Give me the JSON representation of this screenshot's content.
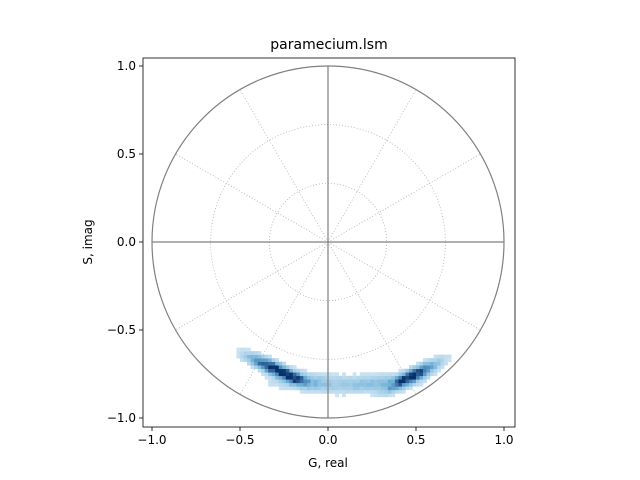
{
  "chart_data": {
    "type": "heatmap",
    "title": "paramecium.lsm",
    "xlabel": "G, real",
    "ylabel": "S, imag",
    "xlim": [
      -1.04,
      1.04
    ],
    "ylim": [
      -1.04,
      1.04
    ],
    "xticks": [
      -1.0,
      -0.5,
      0.0,
      0.5,
      1.0
    ],
    "xtick_labels": [
      "−1.0",
      "−0.5",
      "0.0",
      "0.5",
      "1.0"
    ],
    "yticks": [
      -1.0,
      -0.5,
      0.0,
      0.5,
      1.0
    ],
    "ytick_labels": [
      "−1.0",
      "−0.5",
      "0.0",
      "0.5",
      "1.0"
    ],
    "grid": "polar, dotted",
    "colormap": "Blues",
    "reference": {
      "unit_circle_radius": 1.0,
      "grid_circle_radii": [
        0.333,
        0.667
      ],
      "radial_lines_deg": [
        30,
        60,
        120,
        150,
        210,
        240,
        300,
        330
      ],
      "axis_lines": [
        "horizontal",
        "vertical"
      ]
    },
    "histogram_distribution": {
      "bin_size": 0.02,
      "clusters": [
        {
          "g": -0.32,
          "s": -0.71,
          "spread_along": 0.09,
          "spread_across": 0.022,
          "angle_deg": -24,
          "peak": 1.0
        },
        {
          "g": -0.2,
          "s": -0.77,
          "spread_along": 0.06,
          "spread_across": 0.022,
          "angle_deg": -18,
          "peak": 0.6
        },
        {
          "g": 0.48,
          "s": -0.76,
          "spread_along": 0.1,
          "spread_across": 0.022,
          "angle_deg": 28,
          "peak": 0.95
        },
        {
          "g": 0.05,
          "s": -0.8,
          "spread_along": 0.25,
          "spread_across": 0.03,
          "angle_deg": 0,
          "peak": 0.14
        },
        {
          "g": 0.28,
          "s": -0.8,
          "spread_along": 0.14,
          "spread_across": 0.028,
          "angle_deg": 8,
          "peak": 0.2
        },
        {
          "g": -0.1,
          "s": -0.79,
          "spread_along": 0.1,
          "spread_across": 0.03,
          "angle_deg": -8,
          "peak": 0.18
        }
      ]
    }
  },
  "colors": {
    "reference_lines": "#808080",
    "polar_grid": "#b0b0b0",
    "axes_frame": "#000000",
    "cmap_low": "#f7fbff",
    "cmap_mid": "#6baed6",
    "cmap_high": "#08306b"
  }
}
